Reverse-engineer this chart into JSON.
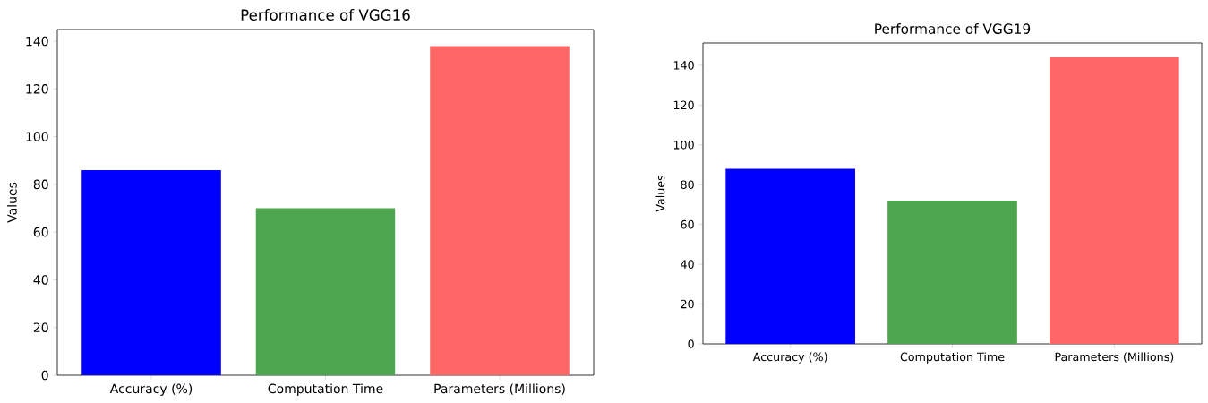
{
  "chart_data": [
    {
      "type": "bar",
      "title": "Performance of VGG16",
      "ylabel": "Values",
      "categories": [
        "Accuracy (%)",
        "Computation Time",
        "Parameters (Millions)"
      ],
      "values": [
        86,
        70,
        138
      ],
      "colors": [
        "#0000ff",
        "#4da64d",
        "#ff6666"
      ],
      "ylim": [
        0,
        144.9
      ],
      "yticks": [
        0,
        20,
        40,
        60,
        80,
        100,
        120,
        140
      ]
    },
    {
      "type": "bar",
      "title": "Performance of VGG19",
      "ylabel": "Values",
      "categories": [
        "Accuracy (%)",
        "Computation Time",
        "Parameters (Millions)"
      ],
      "values": [
        88,
        72,
        144
      ],
      "colors": [
        "#0000ff",
        "#4da64d",
        "#ff6666"
      ],
      "ylim": [
        0,
        151.2
      ],
      "yticks": [
        0,
        20,
        40,
        60,
        80,
        100,
        120,
        140
      ]
    }
  ]
}
